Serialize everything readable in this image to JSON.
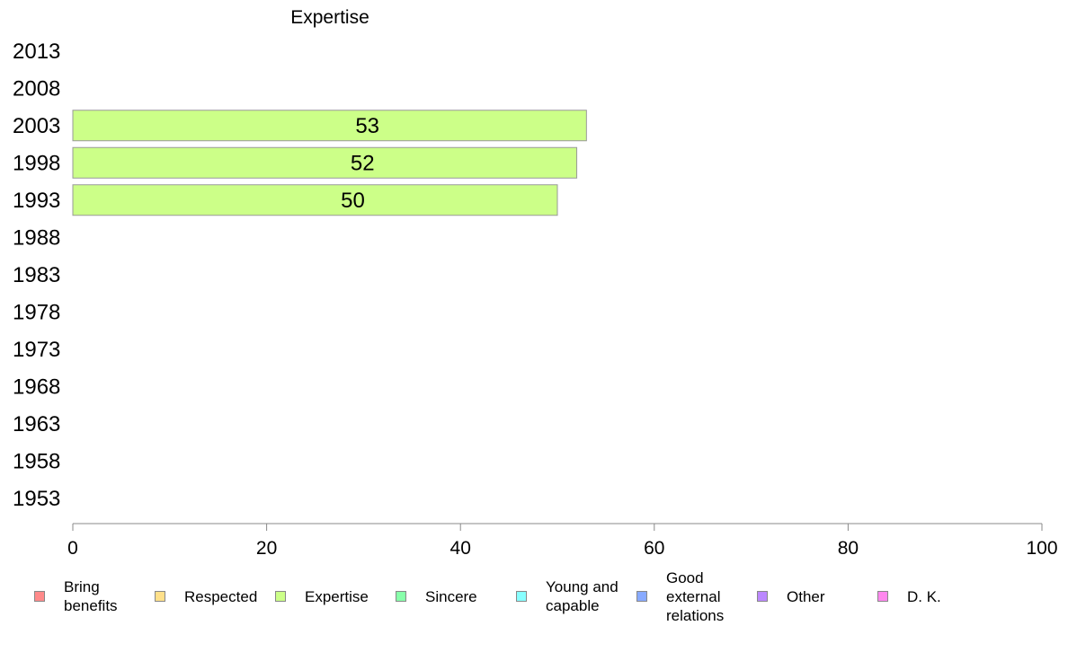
{
  "chart_data": {
    "type": "bar",
    "orientation": "horizontal",
    "title": "Expertise",
    "xlabel": "",
    "ylabel": "",
    "xlim": [
      0,
      100
    ],
    "x_ticks": [
      0,
      20,
      40,
      60,
      80,
      100
    ],
    "categories": [
      "2013",
      "2008",
      "2003",
      "1998",
      "1993",
      "1988",
      "1983",
      "1978",
      "1973",
      "1968",
      "1963",
      "1958",
      "1953"
    ],
    "series": [
      {
        "name": "Expertise",
        "color": "#ccff88",
        "values": [
          null,
          null,
          53,
          52,
          50,
          null,
          null,
          null,
          null,
          null,
          null,
          null,
          null
        ]
      }
    ],
    "grid": false,
    "legend_position": "bottom",
    "legend": [
      {
        "label": "Bring\nbenefits",
        "color": "#ff8a8a"
      },
      {
        "label": "Respected",
        "color": "#ffe08a"
      },
      {
        "label": "Expertise",
        "color": "#ccff88"
      },
      {
        "label": "Sincere",
        "color": "#88ffaa"
      },
      {
        "label": "Young and\ncapable",
        "color": "#88ffff"
      },
      {
        "label": "Good\nexternal\nrelations",
        "color": "#88aaff"
      },
      {
        "label": "Other",
        "color": "#bb88ff"
      },
      {
        "label": "D. K.",
        "color": "#ff88ee"
      }
    ]
  }
}
